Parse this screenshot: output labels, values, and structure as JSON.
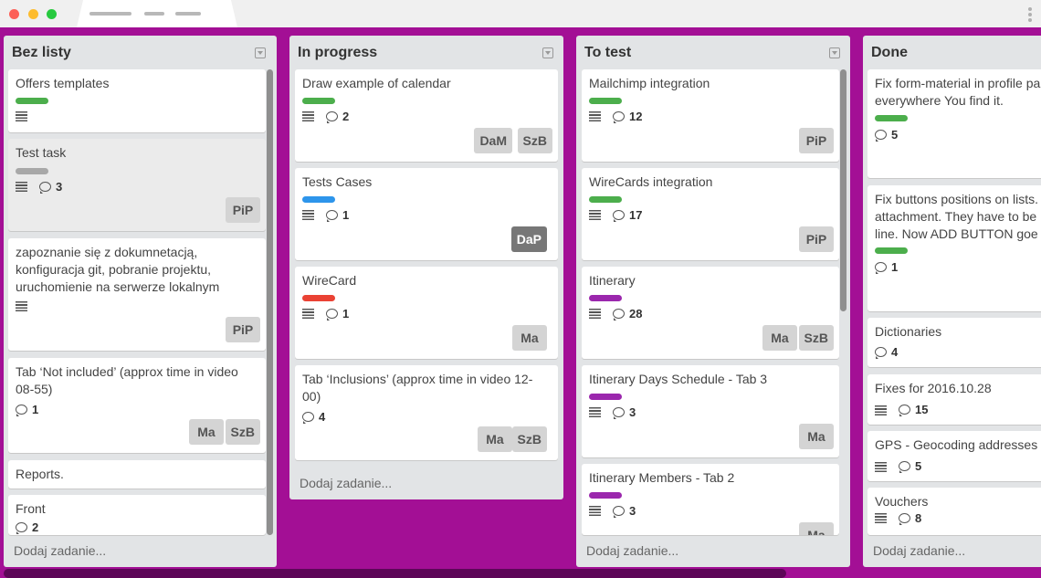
{
  "window": {
    "title_bars": 3
  },
  "colors": {
    "background": "#a30f95",
    "green": "#4cae4c",
    "gray": "#a8a8a8",
    "blue": "#2d95eb",
    "red": "#ea4234",
    "purple": "#9b27ad"
  },
  "lists": [
    {
      "title": "Bez listy",
      "add_label": "Dodaj zadanie...",
      "cards": [
        {
          "title": "Offers templates"
        },
        {
          "title": "Test task",
          "comments": "3",
          "members": [
            "PiP"
          ]
        },
        {
          "title": "zapoznanie się z dokumnetacją, konfiguracja git, pobranie projektu, uruchomienie na serwerze lokalnym",
          "members": [
            "PiP"
          ]
        },
        {
          "title": "Tab ‘Not included’ (approx time in video 08-55)",
          "comments": "1",
          "members": [
            "Ma",
            "SzB"
          ]
        },
        {
          "title": "Reports."
        },
        {
          "title": "Front",
          "comments": "2"
        }
      ]
    },
    {
      "title": "In progress",
      "add_label": "Dodaj zadanie...",
      "cards": [
        {
          "title": "Draw example of calendar",
          "comments": "2",
          "members": [
            "DaM",
            "SzB"
          ]
        },
        {
          "title": "Tests Cases",
          "comments": "1",
          "members": [
            "DaP"
          ]
        },
        {
          "title": "WireCard",
          "comments": "1",
          "members": [
            "Ma"
          ]
        },
        {
          "title": "Tab ‘Inclusions’ (approx time in video 12-00)",
          "comments": "4",
          "members": [
            "Ma",
            "SzB"
          ]
        }
      ]
    },
    {
      "title": "To test",
      "add_label": "Dodaj zadanie...",
      "cards": [
        {
          "title": "Mailchimp integration",
          "comments": "12",
          "members": [
            "PiP"
          ]
        },
        {
          "title": "WireCards integration",
          "comments": "17",
          "members": [
            "PiP"
          ]
        },
        {
          "title": "Itinerary",
          "comments": "28",
          "members": [
            "Ma",
            "SzB"
          ]
        },
        {
          "title": "Itinerary Days Schedule - Tab 3",
          "comments": "3",
          "members": [
            "Ma"
          ]
        },
        {
          "title": "Itinerary Members - Tab 2",
          "comments": "3",
          "members": [
            "Ma"
          ]
        }
      ]
    },
    {
      "title": "Done",
      "add_label": "Dodaj zadanie...",
      "cards": [
        {
          "title_line1": "Fix form-material in profile pa",
          "title_line2": "everywhere You find it.",
          "comments": "5"
        },
        {
          "title_line1": "Fix buttons positions on lists.",
          "title_line2": "attachment. They have to be",
          "title_line3": "line. Now ADD BUTTON goe",
          "comments": "1"
        },
        {
          "title": "Dictionaries",
          "comments": "4"
        },
        {
          "title": "Fixes for 2016.10.28",
          "comments": "15"
        },
        {
          "title": "GPS - Geocoding addresses",
          "comments": "5"
        },
        {
          "title": "Vouchers",
          "comments": "8"
        }
      ]
    }
  ]
}
